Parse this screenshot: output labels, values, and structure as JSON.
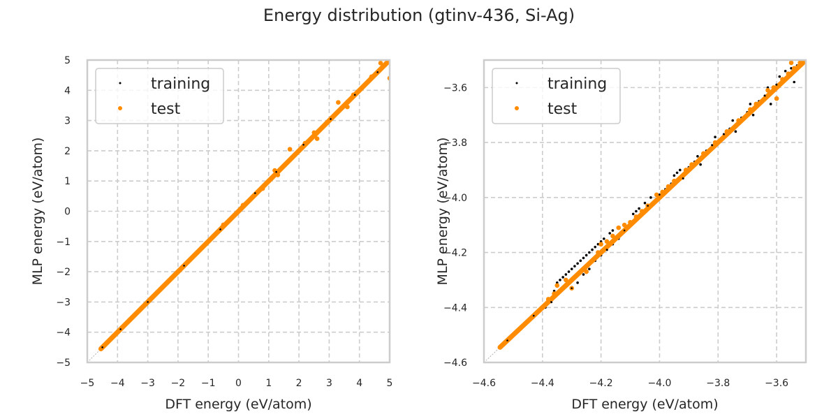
{
  "suptitle": "Energy distribution (gtinv-436, Si-Ag)",
  "colors": {
    "training": "#000000",
    "test": "#ff8c00",
    "grid": "#cccccc",
    "frame": "#cccccc",
    "diagonal": "#a0a0a0"
  },
  "chart_data": [
    {
      "type": "scatter",
      "title": "",
      "xlabel": "DFT energy (eV/atom)",
      "ylabel": "MLP energy (eV/atom)",
      "xlim": [
        -5,
        5
      ],
      "ylim": [
        -5,
        5
      ],
      "xticks": [
        -5,
        -4,
        -3,
        -2,
        -1,
        0,
        1,
        2,
        3,
        4,
        5
      ],
      "yticks": [
        -5,
        -4,
        -3,
        -2,
        -1,
        0,
        1,
        2,
        3,
        4,
        5
      ],
      "xtick_labels": [
        "−5",
        "−4",
        "−3",
        "−2",
        "−1",
        "0",
        "1",
        "2",
        "3",
        "4",
        "5"
      ],
      "ytick_labels": [
        "−5",
        "−4",
        "−3",
        "−2",
        "−1",
        "0",
        "1",
        "2",
        "3",
        "4",
        "5"
      ],
      "grid": true,
      "legend": {
        "placement": "top-left",
        "entries": [
          "training",
          "test"
        ]
      },
      "diagonal": true,
      "series": [
        {
          "name": "training",
          "marker": "small-dot",
          "points": [
            [
              -4.5,
              -4.5
            ],
            [
              -4.3,
              -4.3
            ],
            [
              -4.1,
              -4.1
            ],
            [
              -3.9,
              -3.9
            ],
            [
              -3.6,
              -3.6
            ],
            [
              -3.3,
              -3.3
            ],
            [
              -3.0,
              -3.0
            ],
            [
              -2.6,
              -2.6
            ],
            [
              -2.2,
              -2.2
            ],
            [
              -1.8,
              -1.8
            ],
            [
              -1.4,
              -1.4
            ],
            [
              -1.0,
              -1.0
            ],
            [
              -0.6,
              -0.6
            ],
            [
              -0.2,
              -0.2
            ],
            [
              0.2,
              0.2
            ],
            [
              0.55,
              0.6
            ],
            [
              0.8,
              0.8
            ],
            [
              1.0,
              1.0
            ],
            [
              1.25,
              1.3
            ],
            [
              1.55,
              1.5
            ],
            [
              1.85,
              1.9
            ],
            [
              2.15,
              2.2
            ],
            [
              2.5,
              2.5
            ],
            [
              2.8,
              2.8
            ],
            [
              3.05,
              3.05
            ],
            [
              3.3,
              3.3
            ],
            [
              3.6,
              3.65
            ],
            [
              3.85,
              3.85
            ],
            [
              4.1,
              4.1
            ],
            [
              4.35,
              4.4
            ],
            [
              4.6,
              4.6
            ],
            [
              4.85,
              4.85
            ],
            [
              4.95,
              4.95
            ]
          ]
        },
        {
          "name": "test",
          "marker": "dot",
          "points": [
            [
              -4.55,
              -4.55
            ],
            [
              -4.45,
              -4.45
            ],
            [
              -4.35,
              -4.35
            ],
            [
              -4.2,
              -4.2
            ],
            [
              -4.0,
              -4.0
            ],
            [
              -3.8,
              -3.8
            ],
            [
              -3.6,
              -3.6
            ],
            [
              -3.4,
              -3.4
            ],
            [
              -3.2,
              -3.2
            ],
            [
              -3.0,
              -3.0
            ],
            [
              -2.8,
              -2.8
            ],
            [
              -2.6,
              -2.6
            ],
            [
              -2.4,
              -2.4
            ],
            [
              -2.2,
              -2.2
            ],
            [
              -2.0,
              -2.0
            ],
            [
              -1.8,
              -1.8
            ],
            [
              -1.6,
              -1.6
            ],
            [
              -1.4,
              -1.4
            ],
            [
              -1.2,
              -1.2
            ],
            [
              -1.0,
              -1.0
            ],
            [
              -0.8,
              -0.8
            ],
            [
              -0.6,
              -0.6
            ],
            [
              -0.5,
              -0.45
            ],
            [
              -0.3,
              -0.3
            ],
            [
              0.0,
              0.0
            ],
            [
              0.15,
              0.2
            ],
            [
              0.5,
              0.5
            ],
            [
              0.8,
              0.75
            ],
            [
              1.0,
              1.0
            ],
            [
              1.2,
              1.35
            ],
            [
              1.3,
              1.2
            ],
            [
              1.45,
              1.45
            ],
            [
              1.7,
              2.05
            ],
            [
              1.75,
              1.75
            ],
            [
              2.0,
              2.0
            ],
            [
              2.2,
              2.25
            ],
            [
              2.5,
              2.6
            ],
            [
              2.6,
              2.4
            ],
            [
              2.65,
              2.65
            ],
            [
              2.9,
              2.9
            ],
            [
              3.2,
              3.2
            ],
            [
              3.3,
              3.6
            ],
            [
              3.45,
              3.45
            ],
            [
              3.6,
              3.45
            ],
            [
              3.8,
              3.85
            ],
            [
              4.0,
              4.0
            ],
            [
              4.2,
              4.2
            ],
            [
              4.4,
              4.45
            ],
            [
              4.6,
              4.6
            ],
            [
              4.7,
              4.9
            ],
            [
              4.85,
              4.85
            ],
            [
              5.0,
              4.4
            ]
          ]
        }
      ]
    },
    {
      "type": "scatter",
      "title": "",
      "xlabel": "DFT energy (eV/atom)",
      "ylabel": "MLP energy (eV/atom)",
      "xlim": [
        -4.6,
        -3.5
      ],
      "ylim": [
        -4.6,
        -3.5
      ],
      "xticks": [
        -4.6,
        -4.4,
        -4.2,
        -4.0,
        -3.8,
        -3.6
      ],
      "yticks": [
        -4.6,
        -4.4,
        -4.2,
        -4.0,
        -3.8,
        -3.6
      ],
      "xtick_labels": [
        "−4.6",
        "−4.4",
        "−4.2",
        "−4.0",
        "−3.8",
        "−3.6"
      ],
      "ytick_labels": [
        "−4.6",
        "−4.4",
        "−4.2",
        "−4.0",
        "−3.8",
        "−3.6"
      ],
      "grid": true,
      "legend": {
        "placement": "top-left",
        "entries": [
          "training",
          "test"
        ]
      },
      "diagonal": true,
      "series": [
        {
          "name": "training",
          "marker": "small-dot",
          "points": [
            [
              -4.52,
              -4.52
            ],
            [
              -4.49,
              -4.49
            ],
            [
              -4.46,
              -4.46
            ],
            [
              -4.43,
              -4.43
            ],
            [
              -4.41,
              -4.41
            ],
            [
              -4.39,
              -4.4
            ],
            [
              -4.37,
              -4.38
            ],
            [
              -4.36,
              -4.34
            ],
            [
              -4.35,
              -4.31
            ],
            [
              -4.34,
              -4.3
            ],
            [
              -4.33,
              -4.29
            ],
            [
              -4.32,
              -4.28
            ],
            [
              -4.31,
              -4.27
            ],
            [
              -4.3,
              -4.26
            ],
            [
              -4.29,
              -4.25
            ],
            [
              -4.28,
              -4.24
            ],
            [
              -4.27,
              -4.23
            ],
            [
              -4.26,
              -4.22
            ],
            [
              -4.25,
              -4.21
            ],
            [
              -4.24,
              -4.2
            ],
            [
              -4.23,
              -4.19
            ],
            [
              -4.22,
              -4.18
            ],
            [
              -4.21,
              -4.17
            ],
            [
              -4.2,
              -4.16
            ],
            [
              -4.19,
              -4.15
            ],
            [
              -4.17,
              -4.13
            ],
            [
              -4.16,
              -4.12
            ],
            [
              -4.3,
              -4.33
            ],
            [
              -4.28,
              -4.31
            ],
            [
              -4.26,
              -4.28
            ],
            [
              -4.24,
              -4.26
            ],
            [
              -4.22,
              -4.23
            ],
            [
              -4.2,
              -4.21
            ],
            [
              -4.18,
              -4.19
            ],
            [
              -4.16,
              -4.17
            ],
            [
              -4.14,
              -4.15
            ],
            [
              -4.12,
              -4.12
            ],
            [
              -4.1,
              -4.1
            ],
            [
              -4.09,
              -4.06
            ],
            [
              -4.08,
              -4.05
            ],
            [
              -4.07,
              -4.04
            ],
            [
              -4.05,
              -4.02
            ],
            [
              -4.04,
              -4.03
            ],
            [
              -4.03,
              -4.0
            ],
            [
              -4.01,
              -4.01
            ],
            [
              -4.0,
              -3.99
            ],
            [
              -3.98,
              -3.97
            ],
            [
              -3.96,
              -3.95
            ],
            [
              -3.95,
              -3.92
            ],
            [
              -3.94,
              -3.91
            ],
            [
              -3.93,
              -3.9
            ],
            [
              -3.92,
              -3.93
            ],
            [
              -3.9,
              -3.89
            ],
            [
              -3.88,
              -3.87
            ],
            [
              -3.87,
              -3.85
            ],
            [
              -3.86,
              -3.88
            ],
            [
              -3.84,
              -3.83
            ],
            [
              -3.82,
              -3.81
            ],
            [
              -3.81,
              -3.78
            ],
            [
              -3.8,
              -3.8
            ],
            [
              -3.78,
              -3.77
            ],
            [
              -3.76,
              -3.75
            ],
            [
              -3.75,
              -3.72
            ],
            [
              -3.74,
              -3.76
            ],
            [
              -3.72,
              -3.71
            ],
            [
              -3.7,
              -3.69
            ],
            [
              -3.69,
              -3.66
            ],
            [
              -3.68,
              -3.7
            ],
            [
              -3.66,
              -3.65
            ],
            [
              -3.64,
              -3.63
            ],
            [
              -3.63,
              -3.6
            ],
            [
              -3.62,
              -3.66
            ],
            [
              -3.6,
              -3.59
            ],
            [
              -3.59,
              -3.56
            ],
            [
              -3.58,
              -3.58
            ],
            [
              -3.57,
              -3.54
            ],
            [
              -3.56,
              -3.55
            ],
            [
              -3.55,
              -3.53
            ],
            [
              -3.54,
              -3.58
            ],
            [
              -3.53,
              -3.52
            ],
            [
              -3.52,
              -3.51
            ]
          ]
        },
        {
          "name": "test",
          "marker": "dot",
          "points": [
            [
              -4.545,
              -4.545
            ],
            [
              -4.53,
              -4.53
            ],
            [
              -4.51,
              -4.51
            ],
            [
              -4.48,
              -4.48
            ],
            [
              -4.45,
              -4.45
            ],
            [
              -4.42,
              -4.42
            ],
            [
              -4.4,
              -4.4
            ],
            [
              -4.38,
              -4.37
            ],
            [
              -4.36,
              -4.35
            ],
            [
              -4.35,
              -4.32
            ],
            [
              -4.32,
              -4.3
            ],
            [
              -4.3,
              -4.33
            ],
            [
              -4.28,
              -4.28
            ],
            [
              -4.26,
              -4.26
            ],
            [
              -4.25,
              -4.27
            ],
            [
              -4.23,
              -4.23
            ],
            [
              -4.21,
              -4.2
            ],
            [
              -4.2,
              -4.17
            ],
            [
              -4.18,
              -4.16
            ],
            [
              -4.16,
              -4.14
            ],
            [
              -4.14,
              -4.11
            ],
            [
              -4.12,
              -4.1
            ],
            [
              -4.1,
              -4.09
            ],
            [
              -4.08,
              -4.07
            ],
            [
              -4.06,
              -4.05
            ],
            [
              -4.04,
              -4.03
            ],
            [
              -4.02,
              -4.02
            ],
            [
              -4.01,
              -3.99
            ],
            [
              -3.99,
              -3.98
            ],
            [
              -3.97,
              -3.96
            ],
            [
              -3.95,
              -3.94
            ],
            [
              -3.93,
              -3.93
            ],
            [
              -3.91,
              -3.9
            ],
            [
              -3.89,
              -3.88
            ],
            [
              -3.87,
              -3.87
            ],
            [
              -3.85,
              -3.84
            ],
            [
              -3.83,
              -3.83
            ],
            [
              -3.81,
              -3.8
            ],
            [
              -3.79,
              -3.79
            ],
            [
              -3.77,
              -3.76
            ],
            [
              -3.75,
              -3.75
            ],
            [
              -3.73,
              -3.72
            ],
            [
              -3.71,
              -3.71
            ],
            [
              -3.69,
              -3.68
            ],
            [
              -3.67,
              -3.66
            ],
            [
              -3.65,
              -3.65
            ],
            [
              -3.63,
              -3.61
            ],
            [
              -3.61,
              -3.6
            ],
            [
              -3.6,
              -3.64
            ],
            [
              -3.58,
              -3.57
            ],
            [
              -3.56,
              -3.55
            ],
            [
              -3.54,
              -3.53
            ],
            [
              -3.52,
              -3.51
            ],
            [
              -3.51,
              -3.5
            ],
            [
              -3.55,
              -3.51
            ]
          ]
        }
      ]
    }
  ]
}
